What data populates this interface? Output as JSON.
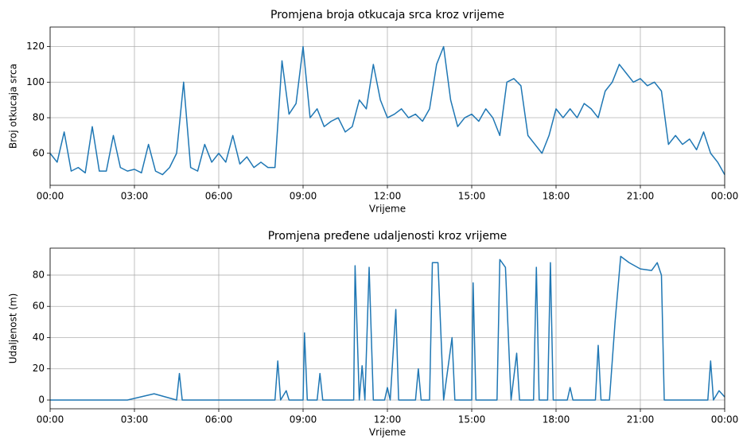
{
  "chart_data": [
    {
      "type": "line",
      "title": "Promjena broja otkucaja srca kroz vrijeme",
      "xlabel": "Vrijeme",
      "ylabel": "Broj otkucaja srca",
      "color": "#1f77b4",
      "grid": true,
      "x": [
        0,
        0.25,
        0.5,
        0.75,
        1,
        1.25,
        1.5,
        1.75,
        2,
        2.25,
        2.5,
        2.75,
        3,
        3.25,
        3.5,
        3.75,
        4,
        4.25,
        4.5,
        4.75,
        5,
        5.25,
        5.5,
        5.75,
        6,
        6.25,
        6.5,
        6.75,
        7,
        7.25,
        7.5,
        7.75,
        8,
        8.25,
        8.5,
        8.75,
        9,
        9.25,
        9.5,
        9.75,
        10,
        10.25,
        10.5,
        10.75,
        11,
        11.25,
        11.5,
        11.75,
        12,
        12.25,
        12.5,
        12.75,
        13,
        13.25,
        13.5,
        13.75,
        14,
        14.25,
        14.5,
        14.75,
        15,
        15.25,
        15.5,
        15.75,
        16,
        16.25,
        16.5,
        16.75,
        17,
        17.25,
        17.5,
        17.75,
        18,
        18.25,
        18.5,
        18.75,
        19,
        19.25,
        19.5,
        19.75,
        20,
        20.25,
        20.5,
        20.75,
        21,
        21.25,
        21.5,
        21.75,
        22,
        22.25,
        22.5,
        22.75,
        23,
        23.25,
        23.5,
        23.75,
        24
      ],
      "values": [
        60,
        55,
        72,
        50,
        52,
        49,
        75,
        50,
        50,
        70,
        52,
        50,
        51,
        49,
        65,
        50,
        48,
        52,
        60,
        100,
        52,
        50,
        65,
        55,
        60,
        55,
        70,
        54,
        58,
        52,
        55,
        52,
        52,
        112,
        82,
        88,
        120,
        80,
        85,
        75,
        78,
        80,
        72,
        75,
        90,
        85,
        110,
        90,
        80,
        82,
        85,
        80,
        82,
        78,
        85,
        110,
        120,
        90,
        75,
        80,
        82,
        78,
        85,
        80,
        70,
        100,
        102,
        98,
        70,
        65,
        60,
        70,
        85,
        80,
        85,
        80,
        88,
        85,
        80,
        95,
        100,
        110,
        105,
        100,
        102,
        98,
        100,
        95,
        65,
        70,
        65,
        68,
        62,
        72,
        60,
        55,
        48
      ],
      "xlim": [
        0,
        24
      ],
      "xticks": [
        {
          "value": 0,
          "label": "00:00"
        },
        {
          "value": 3,
          "label": "03:00"
        },
        {
          "value": 6,
          "label": "06:00"
        },
        {
          "value": 9,
          "label": "09:00"
        },
        {
          "value": 12,
          "label": "12:00"
        },
        {
          "value": 15,
          "label": "15:00"
        },
        {
          "value": 18,
          "label": "18:00"
        },
        {
          "value": 21,
          "label": "21:00"
        },
        {
          "value": 24,
          "label": "00:00"
        }
      ],
      "ylim": [
        42,
        131
      ],
      "yticks": [
        60,
        80,
        100,
        120
      ]
    },
    {
      "type": "line",
      "title": "Promjena pređene udaljenosti kroz vrijeme",
      "xlabel": "Vrijeme",
      "ylabel": "Udaljenost (m)",
      "color": "#1f77b4",
      "grid": true,
      "x": [
        0,
        2.75,
        3.7,
        4.5,
        4.6,
        4.7,
        8,
        8.1,
        8.2,
        8.4,
        8.5,
        9,
        9.05,
        9.15,
        9.5,
        9.6,
        9.7,
        10.8,
        10.85,
        11,
        11.1,
        11.2,
        11.35,
        11.5,
        11.9,
        12,
        12.1,
        12.3,
        12.4,
        13,
        13.1,
        13.2,
        13.5,
        13.6,
        13.8,
        14,
        14.3,
        14.4,
        15,
        15.05,
        15.15,
        15.9,
        16,
        16.2,
        16.4,
        16.6,
        16.7,
        17.2,
        17.3,
        17.4,
        17.7,
        17.8,
        17.9,
        18.4,
        18.5,
        18.6,
        19.4,
        19.5,
        19.6,
        19.9,
        20.1,
        20.3,
        20.6,
        21,
        21.4,
        21.6,
        21.75,
        21.85,
        23.4,
        23.5,
        23.6,
        23.8,
        24
      ],
      "values": [
        0,
        0,
        4,
        0,
        17,
        0,
        0,
        25,
        0,
        6,
        0,
        0,
        43,
        0,
        0,
        17,
        0,
        0,
        86,
        0,
        22,
        0,
        85,
        0,
        0,
        8,
        0,
        58,
        0,
        0,
        20,
        0,
        0,
        88,
        88,
        0,
        40,
        0,
        0,
        75,
        0,
        0,
        90,
        85,
        0,
        30,
        0,
        0,
        85,
        0,
        0,
        88,
        0,
        0,
        8,
        0,
        0,
        35,
        0,
        0,
        50,
        92,
        88,
        84,
        83,
        88,
        80,
        0,
        0,
        25,
        0,
        6,
        2
      ],
      "xlim": [
        0,
        24
      ],
      "xticks": [
        {
          "value": 0,
          "label": "00:00"
        },
        {
          "value": 3,
          "label": "03:00"
        },
        {
          "value": 6,
          "label": "06:00"
        },
        {
          "value": 9,
          "label": "09:00"
        },
        {
          "value": 12,
          "label": "12:00"
        },
        {
          "value": 15,
          "label": "15:00"
        },
        {
          "value": 18,
          "label": "18:00"
        },
        {
          "value": 21,
          "label": "21:00"
        },
        {
          "value": 24,
          "label": "00:00"
        }
      ],
      "ylim": [
        -5.6,
        97.3
      ],
      "yticks": [
        0,
        20,
        40,
        60,
        80
      ]
    }
  ]
}
